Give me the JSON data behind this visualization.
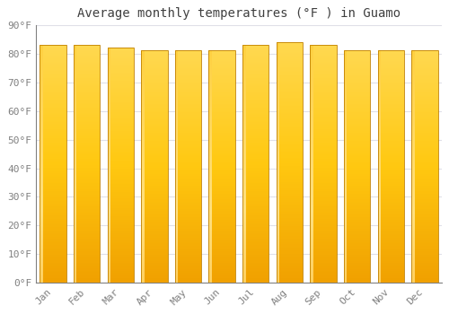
{
  "title": "Average monthly temperatures (°F ) in Guamo",
  "months": [
    "Jan",
    "Feb",
    "Mar",
    "Apr",
    "May",
    "Jun",
    "Jul",
    "Aug",
    "Sep",
    "Oct",
    "Nov",
    "Dec"
  ],
  "values": [
    83,
    83,
    82,
    81,
    81,
    81,
    83,
    84,
    83,
    81,
    81,
    81
  ],
  "ylim": [
    0,
    90
  ],
  "yticks": [
    0,
    10,
    20,
    30,
    40,
    50,
    60,
    70,
    80,
    90
  ],
  "ytick_labels": [
    "0°F",
    "10°F",
    "20°F",
    "30°F",
    "40°F",
    "50°F",
    "60°F",
    "70°F",
    "80°F",
    "90°F"
  ],
  "bar_color_bottom": "#F0A000",
  "bar_color_mid": "#FFB818",
  "bar_color_top": "#FFD050",
  "bar_highlight": "#FFE090",
  "bar_edge_color": "#C08000",
  "background_color": "#FFFFFF",
  "plot_bg_color": "#FFFFFF",
  "grid_color": "#E0E0E8",
  "title_fontsize": 10,
  "tick_fontsize": 8,
  "title_color": "#404040",
  "tick_color": "#808080"
}
